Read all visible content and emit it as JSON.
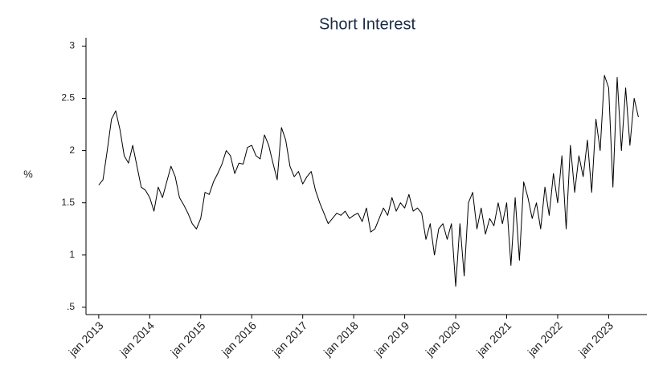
{
  "chart_data": {
    "type": "line",
    "title": "Short Interest",
    "ylabel": "%",
    "x": [
      "2013-01",
      "2013-02",
      "2013-03",
      "2013-04",
      "2013-05",
      "2013-06",
      "2013-07",
      "2013-08",
      "2013-09",
      "2013-10",
      "2013-11",
      "2013-12",
      "2014-01",
      "2014-02",
      "2014-03",
      "2014-04",
      "2014-05",
      "2014-06",
      "2014-07",
      "2014-08",
      "2014-09",
      "2014-10",
      "2014-11",
      "2014-12",
      "2015-01",
      "2015-02",
      "2015-03",
      "2015-04",
      "2015-05",
      "2015-06",
      "2015-07",
      "2015-08",
      "2015-09",
      "2015-10",
      "2015-11",
      "2015-12",
      "2016-01",
      "2016-02",
      "2016-03",
      "2016-04",
      "2016-05",
      "2016-06",
      "2016-07",
      "2016-08",
      "2016-09",
      "2016-10",
      "2016-11",
      "2016-12",
      "2017-01",
      "2017-02",
      "2017-03",
      "2017-04",
      "2017-05",
      "2017-06",
      "2017-07",
      "2017-08",
      "2017-09",
      "2017-10",
      "2017-11",
      "2017-12",
      "2018-01",
      "2018-02",
      "2018-03",
      "2018-04",
      "2018-05",
      "2018-06",
      "2018-07",
      "2018-08",
      "2018-09",
      "2018-10",
      "2018-11",
      "2018-12",
      "2019-01",
      "2019-02",
      "2019-03",
      "2019-04",
      "2019-05",
      "2019-06",
      "2019-07",
      "2019-08",
      "2019-09",
      "2019-10",
      "2019-11",
      "2019-12",
      "2020-01",
      "2020-02",
      "2020-03",
      "2020-04",
      "2020-05",
      "2020-06",
      "2020-07",
      "2020-08",
      "2020-09",
      "2020-10",
      "2020-11",
      "2020-12",
      "2021-01",
      "2021-02",
      "2021-03",
      "2021-04",
      "2021-05",
      "2021-06",
      "2021-07",
      "2021-08",
      "2021-09",
      "2021-10",
      "2021-11",
      "2021-12",
      "2022-01",
      "2022-02",
      "2022-03",
      "2022-04",
      "2022-05",
      "2022-06",
      "2022-07",
      "2022-08",
      "2022-09",
      "2022-10",
      "2022-11",
      "2022-12",
      "2023-01",
      "2023-02",
      "2023-03",
      "2023-04",
      "2023-05",
      "2023-06",
      "2023-07",
      "2023-08"
    ],
    "series": [
      {
        "name": "Short Interest",
        "color": "#000000",
        "values": [
          1.67,
          1.72,
          2.0,
          2.3,
          2.38,
          2.2,
          1.95,
          1.88,
          2.05,
          1.85,
          1.65,
          1.62,
          1.55,
          1.42,
          1.65,
          1.55,
          1.7,
          1.85,
          1.75,
          1.55,
          1.48,
          1.4,
          1.3,
          1.25,
          1.35,
          1.6,
          1.58,
          1.7,
          1.78,
          1.87,
          2.0,
          1.95,
          1.78,
          1.88,
          1.87,
          2.03,
          2.05,
          1.95,
          1.92,
          2.15,
          2.05,
          1.88,
          1.72,
          2.22,
          2.1,
          1.85,
          1.75,
          1.8,
          1.68,
          1.75,
          1.8,
          1.62,
          1.5,
          1.4,
          1.3,
          1.35,
          1.4,
          1.38,
          1.42,
          1.35,
          1.38,
          1.4,
          1.32,
          1.45,
          1.22,
          1.25,
          1.35,
          1.45,
          1.38,
          1.55,
          1.42,
          1.5,
          1.45,
          1.58,
          1.42,
          1.45,
          1.4,
          1.15,
          1.3,
          1.0,
          1.25,
          1.3,
          1.15,
          1.3,
          0.7,
          1.3,
          0.8,
          1.5,
          1.6,
          1.25,
          1.45,
          1.2,
          1.35,
          1.28,
          1.5,
          1.3,
          1.5,
          0.9,
          1.55,
          0.95,
          1.7,
          1.55,
          1.35,
          1.5,
          1.25,
          1.65,
          1.38,
          1.78,
          1.5,
          1.95,
          1.25,
          2.05,
          1.6,
          1.95,
          1.75,
          2.1,
          1.6,
          2.3,
          2.0,
          2.72,
          2.6,
          1.65,
          2.7,
          2.0,
          2.6,
          2.05,
          2.5,
          2.32
        ]
      }
    ],
    "xlim": [
      "2012-10",
      "2023-10"
    ],
    "xticks": [
      {
        "value": "2013-01",
        "label": "jan 2013"
      },
      {
        "value": "2014-01",
        "label": "jan 2014"
      },
      {
        "value": "2015-01",
        "label": "jan 2015"
      },
      {
        "value": "2016-01",
        "label": "jan 2016"
      },
      {
        "value": "2017-01",
        "label": "jan 2017"
      },
      {
        "value": "2018-01",
        "label": "jan 2018"
      },
      {
        "value": "2019-01",
        "label": "jan 2019"
      },
      {
        "value": "2020-01",
        "label": "jan 2020"
      },
      {
        "value": "2021-01",
        "label": "jan 2021"
      },
      {
        "value": "2022-01",
        "label": "jan 2022"
      },
      {
        "value": "2023-01",
        "label": "jan 2023"
      }
    ],
    "ylim": [
      0.43,
      3.08
    ],
    "yticks": [
      {
        "value": 0.5,
        "label": ".5"
      },
      1,
      1.5,
      2,
      2.5,
      3
    ],
    "grid": false
  }
}
